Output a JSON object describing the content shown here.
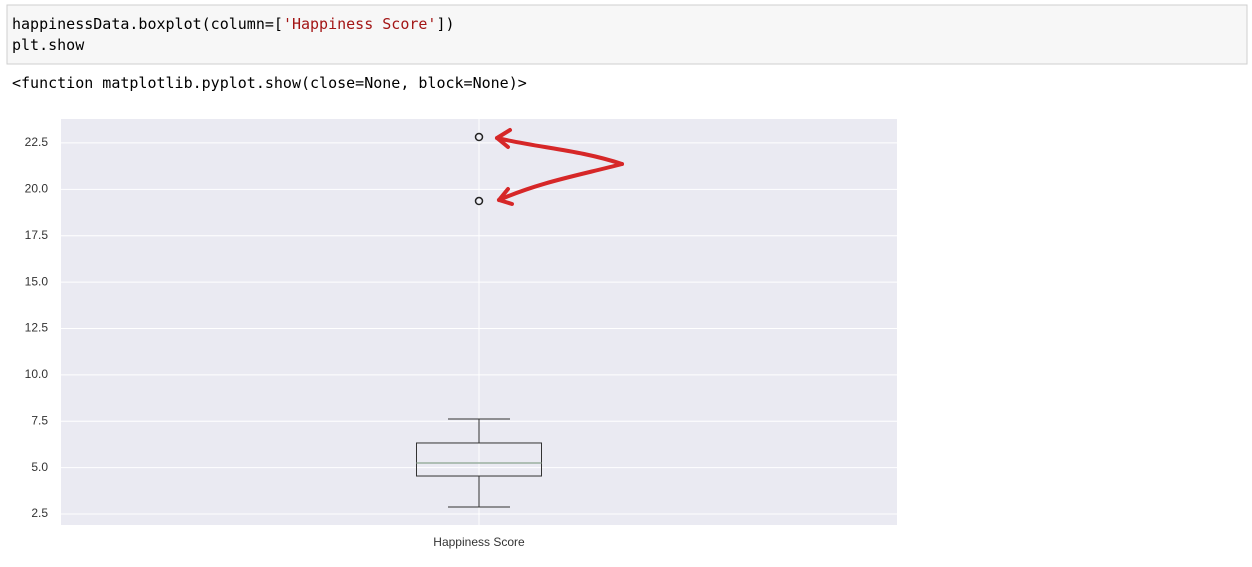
{
  "code": {
    "lines": [
      [
        "happinessData.boxplot(column=[",
        "'Happiness Score'",
        "])"
      ],
      [
        "plt.show"
      ]
    ]
  },
  "output": "<function matplotlib.pyplot.show(close=None, block=None)>",
  "chart_data": {
    "type": "box",
    "categories": [
      "Happiness Score"
    ],
    "boxes": [
      {
        "whisker_low": 2.88,
        "q1": 4.55,
        "median": 5.25,
        "q3": 6.33,
        "whisker_high": 7.62,
        "outliers": [
          19.37,
          22.82
        ]
      }
    ],
    "ylim": [
      1.91,
      23.79
    ],
    "yticks": [
      2.5,
      {
        "value": 5,
        "label": "5.0"
      },
      7.5,
      {
        "value": 10,
        "label": "10.0"
      },
      12.5,
      {
        "value": 15,
        "label": "15.0"
      },
      17.5,
      {
        "value": 20,
        "label": "20.0"
      },
      22.5
    ],
    "grid": true
  }
}
